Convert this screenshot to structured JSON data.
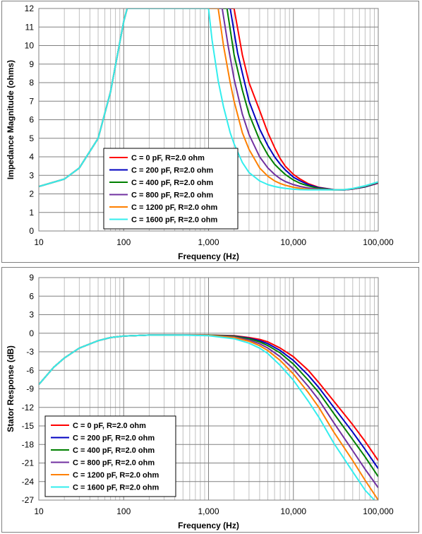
{
  "chart_data": [
    {
      "type": "line",
      "title": "",
      "xlabel": "Frequency (Hz)",
      "ylabel": "Impedance Magnitude (ohms)",
      "xscale": "log",
      "xlim": [
        10,
        100000
      ],
      "ylim": [
        0,
        12
      ],
      "x_ticks": [
        10,
        100,
        1000,
        10000,
        100000
      ],
      "x_tick_labels": [
        "10",
        "100",
        "1,000",
        "10,000",
        "100,000"
      ],
      "y_ticks": [
        0,
        1,
        2,
        3,
        4,
        5,
        6,
        7,
        8,
        9,
        10,
        11,
        12
      ],
      "y_tick_labels": [
        "0",
        "1",
        "2",
        "3",
        "4",
        "5",
        "6",
        "7",
        "8",
        "9",
        "10",
        "11",
        "12"
      ],
      "grid": true,
      "legend_position": "bottom-left",
      "series": [
        {
          "name": "C = 0 pF, R=2.0 ohm",
          "color": "#ff0000",
          "x": [
            10,
            20,
            30,
            50,
            70,
            100,
            110,
            2000,
            2500,
            3000,
            4000,
            5000,
            6000,
            7000,
            8000,
            10000,
            12000,
            15000,
            20000,
            30000,
            40000,
            50000,
            70000,
            100000
          ],
          "y": [
            2.4,
            2.8,
            3.4,
            5.0,
            7.5,
            11.3,
            12,
            12,
            9.5,
            8.0,
            6.5,
            5.3,
            4.5,
            3.9,
            3.5,
            3.05,
            2.8,
            2.55,
            2.35,
            2.23,
            2.22,
            2.26,
            2.38,
            2.58
          ]
        },
        {
          "name": "C = 200 pF, R=2.0 ohm",
          "color": "#0000c0",
          "x": [
            10,
            20,
            30,
            50,
            70,
            100,
            110,
            1800,
            2200,
            3000,
            4000,
            5000,
            6000,
            7000,
            8000,
            10000,
            12000,
            15000,
            20000,
            30000,
            40000,
            50000,
            70000,
            100000
          ],
          "y": [
            2.4,
            2.8,
            3.4,
            5.0,
            7.5,
            11.3,
            12,
            12,
            9.6,
            7.0,
            5.5,
            4.6,
            4.0,
            3.6,
            3.3,
            2.9,
            2.7,
            2.5,
            2.33,
            2.23,
            2.22,
            2.26,
            2.38,
            2.6
          ]
        },
        {
          "name": "C = 400 pF, R=2.0 ohm",
          "color": "#008000",
          "x": [
            10,
            20,
            30,
            50,
            70,
            100,
            110,
            1650,
            2000,
            2500,
            3000,
            4000,
            5000,
            6000,
            7000,
            8000,
            10000,
            12000,
            15000,
            20000,
            30000,
            40000,
            50000,
            70000,
            100000
          ],
          "y": [
            2.4,
            2.8,
            3.4,
            5.0,
            7.5,
            11.3,
            12,
            12,
            9.5,
            7.6,
            6.3,
            4.9,
            4.1,
            3.6,
            3.3,
            3.05,
            2.75,
            2.57,
            2.43,
            2.3,
            2.22,
            2.22,
            2.27,
            2.4,
            2.62
          ]
        },
        {
          "name": "C = 800 pF, R=2.0 ohm",
          "color": "#7030a0",
          "x": [
            10,
            20,
            30,
            50,
            70,
            100,
            110,
            1450,
            1700,
            2000,
            2500,
            3000,
            4000,
            5000,
            6000,
            7000,
            8000,
            10000,
            12000,
            15000,
            20000,
            30000,
            40000,
            50000,
            70000,
            100000
          ],
          "y": [
            2.4,
            2.8,
            3.4,
            5.0,
            7.5,
            11.3,
            12,
            12,
            10.0,
            8.2,
            6.3,
            5.2,
            4.0,
            3.4,
            3.05,
            2.82,
            2.67,
            2.5,
            2.4,
            2.32,
            2.26,
            2.22,
            2.22,
            2.27,
            2.42,
            2.63
          ]
        },
        {
          "name": "C = 1200 pF, R=2.0 ohm",
          "color": "#ff8000",
          "x": [
            10,
            20,
            30,
            50,
            70,
            100,
            110,
            1300,
            1500,
            1800,
            2000,
            2500,
            3000,
            4000,
            5000,
            6000,
            7000,
            8000,
            10000,
            12000,
            15000,
            20000,
            30000,
            40000,
            50000,
            70000,
            100000
          ],
          "y": [
            2.4,
            2.8,
            3.4,
            5.0,
            7.5,
            11.3,
            12,
            12,
            10.0,
            8.0,
            7.0,
            5.3,
            4.4,
            3.4,
            2.95,
            2.7,
            2.56,
            2.47,
            2.36,
            2.3,
            2.25,
            2.23,
            2.22,
            2.23,
            2.28,
            2.43,
            2.64
          ]
        },
        {
          "name": "C = 1600 pF, R=2.0 ohm",
          "color": "#33eeee",
          "x": [
            10,
            20,
            30,
            50,
            70,
            100,
            110,
            1000,
            1100,
            1300,
            1500,
            1800,
            2000,
            2500,
            3000,
            4000,
            5000,
            6000,
            7000,
            8000,
            10000,
            12000,
            15000,
            20000,
            30000,
            40000,
            50000,
            70000,
            100000
          ],
          "y": [
            2.4,
            2.8,
            3.4,
            5.0,
            7.5,
            11.3,
            12,
            12,
            10.3,
            8.1,
            6.7,
            5.3,
            4.7,
            3.7,
            3.15,
            2.7,
            2.5,
            2.4,
            2.34,
            2.3,
            2.25,
            2.23,
            2.22,
            2.22,
            2.22,
            2.23,
            2.29,
            2.44,
            2.65
          ]
        }
      ]
    },
    {
      "type": "line",
      "title": "",
      "xlabel": "Frequency (Hz)",
      "ylabel": "Stator Response (dB)",
      "xscale": "log",
      "xlim": [
        10,
        100000
      ],
      "ylim": [
        -27,
        9
      ],
      "x_ticks": [
        10,
        100,
        1000,
        10000,
        100000
      ],
      "x_tick_labels": [
        "10",
        "100",
        "1,000",
        "10,000",
        "100,000"
      ],
      "y_ticks": [
        9,
        6,
        3,
        0,
        -3,
        -6,
        -9,
        -12,
        -15,
        -18,
        -21,
        -24,
        -27
      ],
      "y_tick_labels": [
        "9",
        "6",
        "3",
        "0",
        "-3",
        "-6",
        "-9",
        "-12",
        "-15",
        "-18",
        "-21",
        "-24",
        "-27"
      ],
      "grid": true,
      "legend_position": "bottom-left",
      "series": [
        {
          "name": "C = 0 pF, R=2.0 ohm",
          "color": "#ff0000",
          "x": [
            10,
            15,
            20,
            30,
            50,
            70,
            100,
            200,
            500,
            1000,
            2000,
            3000,
            4000,
            5000,
            7000,
            10000,
            15000,
            20000,
            30000,
            50000,
            70000,
            100000
          ],
          "y": [
            -8.3,
            -5.5,
            -4.0,
            -2.4,
            -1.2,
            -0.7,
            -0.45,
            -0.3,
            -0.3,
            -0.3,
            -0.4,
            -0.7,
            -1.0,
            -1.4,
            -2.4,
            -3.8,
            -6.0,
            -8.0,
            -11.0,
            -14.8,
            -17.5,
            -20.6
          ]
        },
        {
          "name": "C = 200 pF, R=2.0 ohm",
          "color": "#0000c0",
          "x": [
            10,
            15,
            20,
            30,
            50,
            70,
            100,
            200,
            500,
            1000,
            2000,
            3000,
            4000,
            5000,
            7000,
            10000,
            15000,
            20000,
            30000,
            50000,
            70000,
            100000
          ],
          "y": [
            -8.3,
            -5.5,
            -4.0,
            -2.4,
            -1.2,
            -0.7,
            -0.45,
            -0.3,
            -0.3,
            -0.3,
            -0.45,
            -0.8,
            -1.2,
            -1.7,
            -2.8,
            -4.4,
            -6.8,
            -8.8,
            -12.0,
            -16.0,
            -18.8,
            -21.9
          ]
        },
        {
          "name": "C = 400 pF, R=2.0 ohm",
          "color": "#008000",
          "x": [
            10,
            15,
            20,
            30,
            50,
            70,
            100,
            200,
            500,
            1000,
            2000,
            3000,
            4000,
            5000,
            7000,
            10000,
            15000,
            20000,
            30000,
            50000,
            70000,
            100000
          ],
          "y": [
            -8.3,
            -5.5,
            -4.0,
            -2.4,
            -1.2,
            -0.7,
            -0.45,
            -0.3,
            -0.3,
            -0.3,
            -0.5,
            -0.9,
            -1.4,
            -2.0,
            -3.2,
            -5.0,
            -7.6,
            -9.6,
            -13.0,
            -17.2,
            -20.0,
            -23.2
          ]
        },
        {
          "name": "C = 800 pF, R=2.0 ohm",
          "color": "#7030a0",
          "x": [
            10,
            15,
            20,
            30,
            50,
            70,
            100,
            200,
            500,
            1000,
            2000,
            3000,
            4000,
            5000,
            7000,
            10000,
            15000,
            20000,
            30000,
            50000,
            70000,
            100000
          ],
          "y": [
            -8.3,
            -5.5,
            -4.0,
            -2.4,
            -1.2,
            -0.7,
            -0.45,
            -0.3,
            -0.3,
            -0.35,
            -0.6,
            -1.1,
            -1.7,
            -2.4,
            -3.8,
            -5.8,
            -8.6,
            -10.8,
            -14.5,
            -19.0,
            -22.0,
            -25.0
          ]
        },
        {
          "name": "C = 1200 pF, R=2.0 ohm",
          "color": "#ff8000",
          "x": [
            10,
            15,
            20,
            30,
            50,
            70,
            100,
            200,
            500,
            1000,
            2000,
            3000,
            4000,
            5000,
            7000,
            10000,
            15000,
            20000,
            30000,
            50000,
            70000,
            100000
          ],
          "y": [
            -8.3,
            -5.5,
            -4.0,
            -2.4,
            -1.2,
            -0.7,
            -0.45,
            -0.3,
            -0.3,
            -0.35,
            -0.7,
            -1.3,
            -2.0,
            -2.8,
            -4.4,
            -6.6,
            -9.6,
            -12.0,
            -16.0,
            -20.6,
            -23.8,
            -27.0
          ]
        },
        {
          "name": "C = 1600 pF, R=2.0 ohm",
          "color": "#33eeee",
          "x": [
            10,
            15,
            20,
            30,
            50,
            70,
            100,
            200,
            500,
            1000,
            2000,
            3000,
            4000,
            5000,
            7000,
            10000,
            15000,
            20000,
            30000,
            50000,
            70000,
            90000
          ],
          "y": [
            -8.3,
            -5.5,
            -4.0,
            -2.4,
            -1.2,
            -0.7,
            -0.45,
            -0.3,
            -0.3,
            -0.4,
            -0.9,
            -1.6,
            -2.4,
            -3.3,
            -5.2,
            -7.6,
            -11.0,
            -13.6,
            -17.8,
            -22.4,
            -25.4,
            -27.0
          ]
        }
      ]
    }
  ]
}
